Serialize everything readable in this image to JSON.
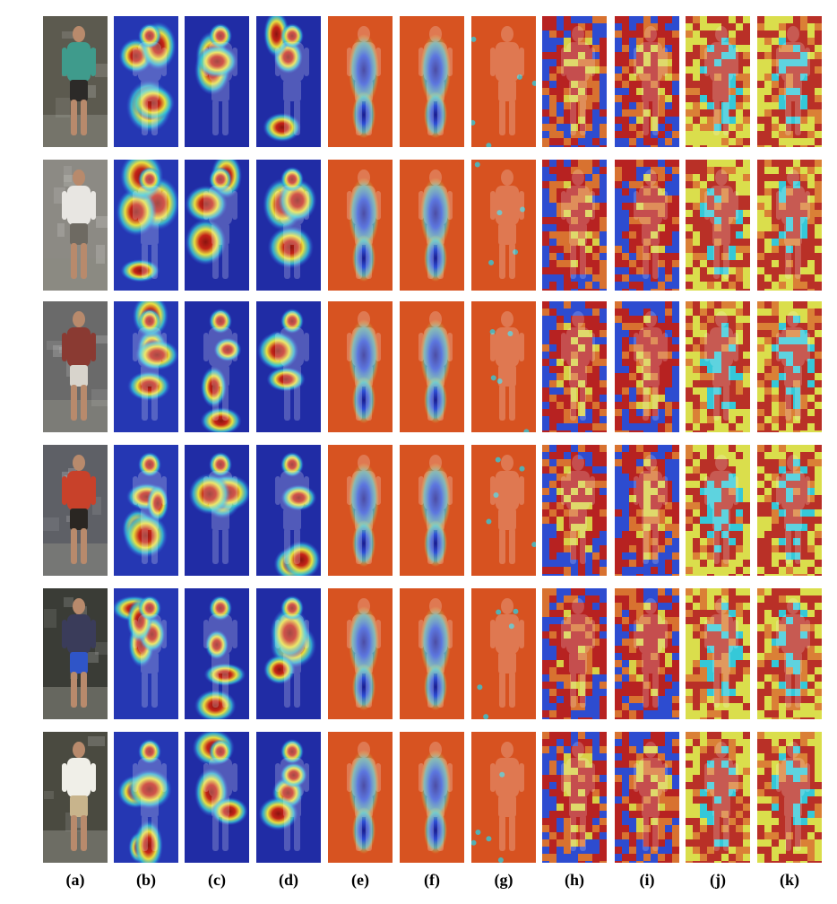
{
  "figure": {
    "column_labels": [
      "(a)",
      "(b)",
      "(c)",
      "(d)",
      "(e)",
      "(f)",
      "(g)",
      "(h)",
      "(i)",
      "(j)",
      "(k)"
    ],
    "column_kinds": [
      "photo",
      "blob",
      "focus",
      "focus",
      "inverse",
      "inverse",
      "warm",
      "blocky",
      "blocky",
      "blocky-light",
      "blocky-light"
    ],
    "rows": [
      {
        "subject": "person-teal-jacket-backpack",
        "clothing": "#3f9b8c",
        "lower": "#2c2a28",
        "background": "#5c5a4f"
      },
      {
        "subject": "person-white-shirt-handbag",
        "clothing": "#e8e6e2",
        "lower": "#6e6a62",
        "background": "#8c8a84"
      },
      {
        "subject": "person-plaid-shirt-shorts",
        "clothing": "#8a3a32",
        "lower": "#d8d4cc",
        "background": "#6a6a6a"
      },
      {
        "subject": "person-red-shirt-carrying-bag",
        "clothing": "#c8412a",
        "lower": "#2a2622",
        "background": "#5e6066"
      },
      {
        "subject": "person-striped-shirt-blue-shorts",
        "clothing": "#3a3c5a",
        "lower": "#2f55c8",
        "background": "#3a3c36"
      },
      {
        "subject": "person-white-shirt-backpack-bicycles",
        "clothing": "#f0efe8",
        "lower": "#c8b48c",
        "background": "#4a4a40"
      }
    ],
    "heatmap_colors": {
      "deep_blue": "#1a1a8a",
      "blue": "#2f50d6",
      "cyan": "#35c8d8",
      "yellow": "#e8e040",
      "orange": "#e87a28",
      "red": "#c42318",
      "dark_red": "#8a1410"
    }
  }
}
